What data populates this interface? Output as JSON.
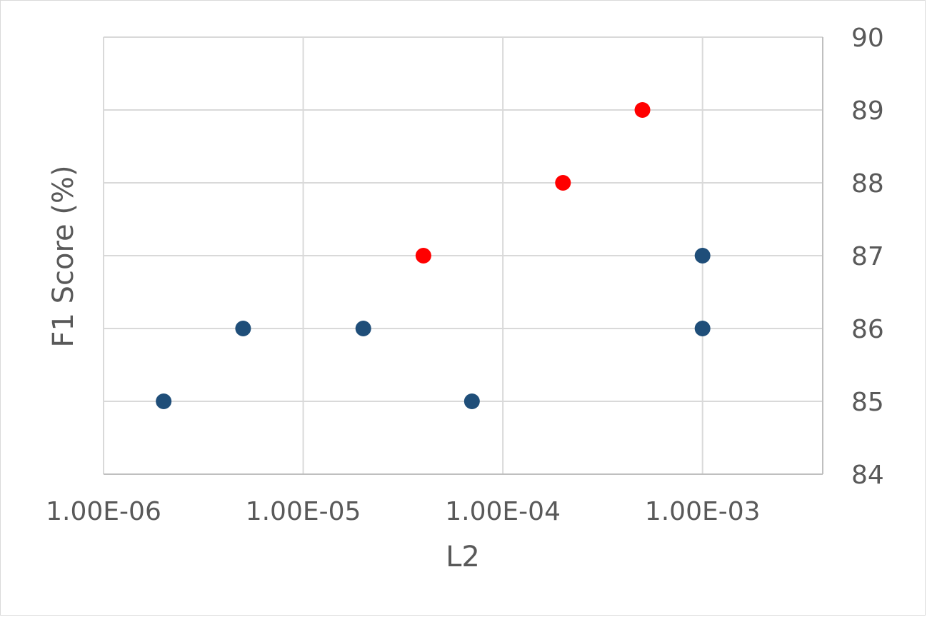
{
  "chart_data": {
    "type": "scatter",
    "title": "",
    "xlabel": "L2",
    "ylabel": "F1 Score (%)",
    "x_scale": "log",
    "xlim": [
      1e-06,
      0.004
    ],
    "ylim": [
      84,
      90
    ],
    "x_ticks": [
      1e-06,
      1e-05,
      0.0001,
      0.001
    ],
    "x_tick_labels": [
      "1.00E-06",
      "1.00E-05",
      "1.00E-04",
      "1.00E-03"
    ],
    "y_ticks": [
      84,
      85,
      86,
      87,
      88,
      89,
      90
    ],
    "y_tick_labels": [
      "84",
      "85",
      "86",
      "87",
      "88",
      "89",
      "90"
    ],
    "y_axis_position": "right",
    "grid": true,
    "legend": "none",
    "series": [
      {
        "color": "#1f4e79",
        "points": [
          {
            "x": 2e-06,
            "y": 85
          },
          {
            "x": 5e-06,
            "y": 86
          },
          {
            "x": 2e-05,
            "y": 86
          },
          {
            "x": 7e-05,
            "y": 85
          },
          {
            "x": 0.001,
            "y": 87
          },
          {
            "x": 0.001,
            "y": 86
          }
        ]
      },
      {
        "color": "#ff0000",
        "points": [
          {
            "x": 4e-05,
            "y": 87
          },
          {
            "x": 0.0002,
            "y": 88
          },
          {
            "x": 0.0005,
            "y": 89
          }
        ]
      }
    ]
  }
}
